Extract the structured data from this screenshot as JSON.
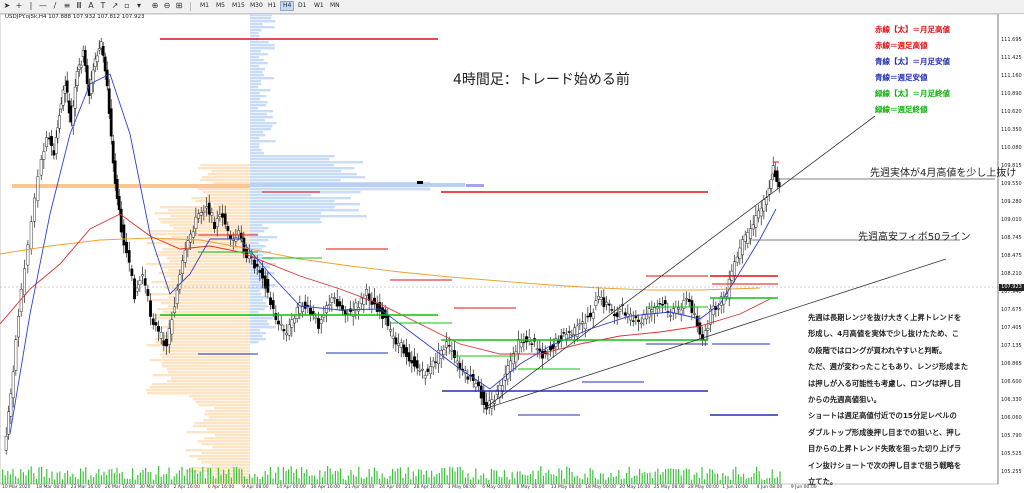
{
  "toolbar": {
    "timeframes": [
      "M1",
      "M5",
      "M15",
      "M30",
      "H1",
      "H4",
      "D1",
      "W1",
      "MN"
    ],
    "active_timeframe": "H4"
  },
  "chart_info": "USDJPY.oj5k,H4  107.888 107.932 107.812 107.923",
  "title": "4時間足：トレード始める前",
  "legend": [
    {
      "text": "赤線【太】＝月足高値",
      "color": "#e01010"
    },
    {
      "text": "赤線＝週足高値",
      "color": "#e01010"
    },
    {
      "text": "青線【太】＝月足安値",
      "color": "#2030b0"
    },
    {
      "text": "青線＝週足安値",
      "color": "#2030b0"
    },
    {
      "text": "緑線【太】＝月足終値",
      "color": "#10b010"
    },
    {
      "text": "緑線＝週足終値",
      "color": "#10b010"
    }
  ],
  "annotations": {
    "body_break": "先週実体が4月高値を少し上抜け",
    "fibo_line": "先週高安フィボ50ライン"
  },
  "paragraph": [
    "先週は長期レンジを抜け大きく上昇トレンドを",
    "形成し、4月高値を実体で少し抜けたため、こ",
    "の段階ではロングが買われやすいと判断。",
    "ただ、週が変わったこともあり、レンジ形成また",
    "は押しが入る可能性も考慮し、ロングは押し目",
    "からの先週高値狙い。",
    "ショートは週足高値付近での15分足レベルの",
    "ダブルトップ形成後押し目までの狙いと、押し",
    "目からの上昇トレンド失敗を狙った切り上げラ",
    "イン抜けショートで次の押し目まで狙う戦略を",
    "立てた。"
  ],
  "price_axis": [
    "111.695",
    "111.425",
    "111.160",
    "110.890",
    "110.620",
    "110.350",
    "110.080",
    "109.815",
    "109.550",
    "109.280",
    "109.010",
    "108.745",
    "108.475",
    "108.210",
    "107.940",
    "107.675",
    "107.405",
    "107.135",
    "106.865",
    "106.600",
    "106.330",
    "106.060",
    "105.790",
    "105.525",
    "105.255"
  ],
  "current_price": "107.923",
  "date_axis": [
    "10 Mar 2020",
    "18 Mar 08:00",
    "23 Mar 16:00",
    "26 Mar 16:00",
    "30 Mar 08:00",
    "2 Apr 16:00",
    "6 Apr 16:00",
    "9 Apr 08:00",
    "14 Apr 00:00",
    "16 Apr 16:00",
    "21 Apr 08:00",
    "24 Apr 00:00",
    "28 Apr 16:00",
    "1 May 08:00",
    "6 May 00:00",
    "8 May 16:00",
    "13 May 08:00",
    "18 May 00:00",
    "20 May 16:00",
    "25 May 08:00",
    "28 May 00:00",
    "1 Jun 16:00",
    "4 Jun 08:00",
    "9 Jun 00:00"
  ],
  "colors": {
    "up": "#ffffff",
    "down": "#000000",
    "ma_blue": "#3040d0",
    "ma_red": "#e03030",
    "ma_orange": "#f0a030",
    "profile_orange": "#fde4c4",
    "profile_blue": "#c8dcf8"
  }
}
